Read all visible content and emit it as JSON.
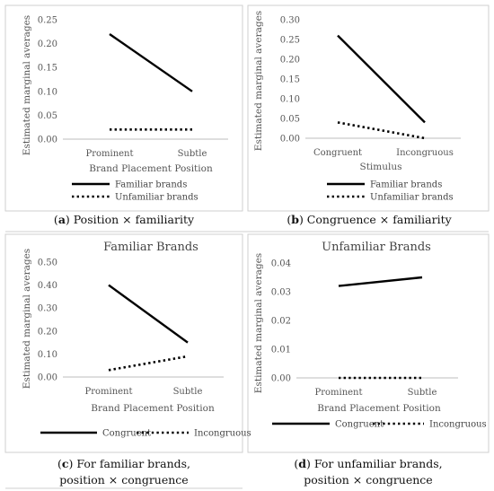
{
  "chart_data": [
    {
      "type": "line",
      "title": "",
      "xlabel": "Brand Placement Position",
      "ylabel": "Estimated marginal averages",
      "categories": [
        "Prominent",
        "Subtle"
      ],
      "ylim": [
        0,
        0.25
      ],
      "yticks": [
        "0.00",
        "0.05",
        "0.10",
        "0.15",
        "0.20",
        "0.25"
      ],
      "series": [
        {
          "name": "Familiar brands",
          "values": [
            0.22,
            0.1
          ],
          "style": "solid"
        },
        {
          "name": "Unfamiliar brands",
          "values": [
            0.02,
            0.02
          ],
          "style": "dotted"
        }
      ],
      "legend": "bottom",
      "caption": {
        "bold": "a",
        "text": " Position × familiarity"
      }
    },
    {
      "type": "line",
      "title": "",
      "xlabel": "Stimulus",
      "ylabel": "Estimated marginal averages",
      "categories": [
        "Congruent",
        "Incongruous"
      ],
      "ylim": [
        0,
        0.3
      ],
      "yticks": [
        "0.00",
        "0.05",
        "0.10",
        "0.15",
        "0.20",
        "0.25",
        "0.30"
      ],
      "series": [
        {
          "name": "Familiar brands",
          "values": [
            0.26,
            0.04
          ],
          "style": "solid"
        },
        {
          "name": "Unfamiliar brands",
          "values": [
            0.04,
            0.0
          ],
          "style": "dotted"
        }
      ],
      "legend": "bottom",
      "caption": {
        "bold": "b",
        "text": " Congruence × familiarity"
      }
    },
    {
      "type": "line",
      "title": "Familiar Brands",
      "xlabel": "Brand Placement Position",
      "ylabel": "Estimated marginal averages",
      "categories": [
        "Prominent",
        "Subtle"
      ],
      "ylim": [
        0,
        0.5
      ],
      "yticks": [
        "0.00",
        "0.10",
        "0.20",
        "0.30",
        "0.40",
        "0.50"
      ],
      "series": [
        {
          "name": "Congruent",
          "values": [
            0.4,
            0.15
          ],
          "style": "solid"
        },
        {
          "name": "Incongruous",
          "values": [
            0.03,
            0.09
          ],
          "style": "dotted"
        }
      ],
      "legend": "bottom",
      "caption": {
        "bold": "c",
        "text": " For familiar brands,",
        "text2": "position × congruence"
      }
    },
    {
      "type": "line",
      "title": "Unfamiliar Brands",
      "xlabel": "Brand Placement Position",
      "ylabel": "Estimated marginal averages",
      "categories": [
        "Prominent",
        "Subtle"
      ],
      "ylim": [
        0,
        0.04
      ],
      "yticks": [
        "0.00",
        "0.01",
        "0.02",
        "0.03",
        "0.04"
      ],
      "series": [
        {
          "name": "Congruent",
          "values": [
            0.032,
            0.035
          ],
          "style": "solid"
        },
        {
          "name": "Incongruous",
          "values": [
            0.0,
            0.0
          ],
          "style": "dotted"
        }
      ],
      "legend": "bottom",
      "caption": {
        "bold": "d",
        "text": " For unfamiliar brands,",
        "text2": "position × congruence"
      }
    }
  ]
}
